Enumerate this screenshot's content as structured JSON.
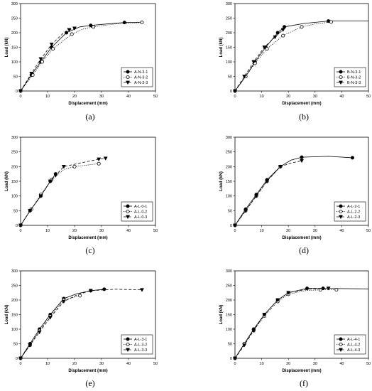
{
  "chart_data": [
    {
      "type": "line",
      "caption": "(a)",
      "xlabel": "Displacement (mm)",
      "ylabel": "Load (kN)",
      "xlim": [
        0,
        50
      ],
      "ylim": [
        0,
        300
      ],
      "xticks": [
        "0",
        "10",
        "20",
        "30",
        "40",
        "50"
      ],
      "yticks": [
        "0",
        "50",
        "100",
        "150",
        "200",
        "250",
        "300"
      ],
      "grid": false,
      "legend_position": "bottom-right",
      "series": [
        {
          "name": "A-N-3-1",
          "marker": "filled-circle",
          "line": "solid",
          "x": [
            0,
            4,
            7.5,
            11.5,
            17,
            26,
            38.5
          ],
          "y": [
            0,
            55,
            100,
            150,
            200,
            225,
            235
          ],
          "curve": [
            [
              0,
              0
            ],
            [
              4,
              55
            ],
            [
              7.5,
              100
            ],
            [
              11.5,
              150
            ],
            [
              17,
              200
            ],
            [
              22,
              220
            ],
            [
              26,
              225
            ],
            [
              32,
              230
            ],
            [
              38.5,
              235
            ],
            [
              45,
              236
            ]
          ]
        },
        {
          "name": "A-N-3-2",
          "marker": "open-circle",
          "line": "dotted",
          "x": [
            0,
            4.5,
            8,
            12,
            19,
            27,
            45
          ],
          "y": [
            0,
            55,
            100,
            145,
            195,
            220,
            235
          ],
          "curve": [
            [
              0,
              0
            ],
            [
              4.5,
              55
            ],
            [
              8,
              100
            ],
            [
              12,
              145
            ],
            [
              19,
              195
            ],
            [
              23,
              212
            ],
            [
              27,
              220
            ],
            [
              35,
              230
            ],
            [
              45,
              235
            ]
          ]
        },
        {
          "name": "A-N-3-3",
          "marker": "filled-triangle",
          "line": "dashed",
          "x": [
            0,
            4,
            7.5,
            11.5,
            18,
            20
          ],
          "y": [
            0,
            60,
            110,
            160,
            210,
            215
          ],
          "curve": [
            [
              0,
              0
            ],
            [
              4,
              60
            ],
            [
              7.5,
              110
            ],
            [
              11.5,
              160
            ],
            [
              16,
              200
            ],
            [
              18,
              210
            ],
            [
              20,
              215
            ]
          ]
        }
      ]
    },
    {
      "type": "line",
      "caption": "(b)",
      "xlabel": "Displacement (mm)",
      "ylabel": "Load (kN)",
      "xlim": [
        0,
        50
      ],
      "ylim": [
        0,
        300
      ],
      "xticks": [
        "0",
        "10",
        "20",
        "30",
        "40",
        "50"
      ],
      "yticks": [
        "0",
        "50",
        "100",
        "150",
        "200",
        "250",
        "300"
      ],
      "grid": false,
      "legend_position": "bottom-right",
      "series": [
        {
          "name": "B-N-3-1",
          "marker": "filled-circle",
          "line": "solid",
          "x": [
            0,
            4,
            7.5,
            11.5,
            16,
            18.5,
            35
          ],
          "y": [
            0,
            50,
            100,
            150,
            200,
            220,
            240
          ],
          "curve": [
            [
              0,
              0
            ],
            [
              4,
              50
            ],
            [
              7.5,
              100
            ],
            [
              11.5,
              150
            ],
            [
              16,
              200
            ],
            [
              18.5,
              220
            ],
            [
              26,
              232
            ],
            [
              35,
              240
            ],
            [
              50,
              240
            ]
          ]
        },
        {
          "name": "B-N-3-2",
          "marker": "open-circle",
          "line": "dotted",
          "x": [
            0,
            4,
            7.5,
            12,
            18,
            25,
            36
          ],
          "y": [
            0,
            50,
            95,
            145,
            190,
            220,
            237
          ],
          "curve": [
            [
              0,
              0
            ],
            [
              4,
              50
            ],
            [
              7.5,
              95
            ],
            [
              12,
              145
            ],
            [
              18,
              190
            ],
            [
              25,
              220
            ],
            [
              30,
              230
            ],
            [
              36,
              237
            ]
          ]
        },
        {
          "name": "B-N-3-3",
          "marker": "filled-triangle",
          "line": "dashed",
          "x": [
            0,
            3.5,
            7,
            11,
            15,
            18
          ],
          "y": [
            0,
            50,
            100,
            150,
            185,
            210
          ],
          "curve": [
            [
              0,
              0
            ],
            [
              3.5,
              50
            ],
            [
              7,
              100
            ],
            [
              11,
              150
            ],
            [
              15,
              185
            ],
            [
              18,
              210
            ]
          ]
        }
      ]
    },
    {
      "type": "line",
      "caption": "(c)",
      "xlabel": "Displacement (mm)",
      "ylabel": "Load (kN)",
      "xlim": [
        0,
        50
      ],
      "ylim": [
        0,
        300
      ],
      "xticks": [
        "0",
        "10",
        "20",
        "30",
        "40",
        "50"
      ],
      "yticks": [
        "0",
        "50",
        "100",
        "150",
        "200",
        "250",
        "300"
      ],
      "grid": false,
      "legend_position": "bottom-right",
      "series": [
        {
          "name": "A-L-0-1",
          "marker": "filled-circle",
          "line": "solid",
          "x": [
            0,
            3.5,
            7.5,
            11,
            13
          ],
          "y": [
            0,
            50,
            100,
            150,
            175
          ],
          "curve": [
            [
              0,
              0
            ],
            [
              3.5,
              50
            ],
            [
              7.5,
              100
            ],
            [
              11,
              150
            ],
            [
              13,
              175
            ]
          ]
        },
        {
          "name": "A-L-0-2",
          "marker": "open-circle",
          "line": "dotted",
          "x": [
            0,
            4,
            7.5,
            11.5,
            20,
            29
          ],
          "y": [
            0,
            55,
            105,
            155,
            200,
            210
          ],
          "curve": [
            [
              0,
              0
            ],
            [
              4,
              55
            ],
            [
              7.5,
              105
            ],
            [
              11.5,
              155
            ],
            [
              16,
              190
            ],
            [
              20,
              200
            ],
            [
              29,
              210
            ]
          ]
        },
        {
          "name": "A-L-0-3",
          "marker": "filled-triangle",
          "line": "dashed",
          "x": [
            0,
            3.5,
            7.5,
            11,
            13,
            16,
            29,
            31.5
          ],
          "y": [
            0,
            50,
            100,
            150,
            170,
            200,
            225,
            228
          ],
          "curve": [
            [
              0,
              0
            ],
            [
              3.5,
              50
            ],
            [
              7.5,
              100
            ],
            [
              11,
              150
            ],
            [
              13,
              170
            ],
            [
              16,
              200
            ],
            [
              22,
              212
            ],
            [
              29,
              225
            ],
            [
              31.5,
              228
            ]
          ]
        }
      ]
    },
    {
      "type": "line",
      "caption": "(d)",
      "xlabel": "Displacement (mm)",
      "ylabel": "Load (kN)",
      "xlim": [
        0,
        50
      ],
      "ylim": [
        0,
        300
      ],
      "xticks": [
        "0",
        "10",
        "20",
        "30",
        "40",
        "50"
      ],
      "yticks": [
        "0",
        "50",
        "100",
        "150",
        "200",
        "250",
        "300"
      ],
      "grid": false,
      "legend_position": "bottom-right",
      "series": [
        {
          "name": "A-L-2-1",
          "marker": "filled-circle",
          "line": "solid",
          "x": [
            0,
            4,
            8,
            12,
            17,
            25,
            44
          ],
          "y": [
            0,
            55,
            105,
            155,
            200,
            232,
            230
          ],
          "curve": [
            [
              0,
              0
            ],
            [
              4,
              55
            ],
            [
              8,
              105
            ],
            [
              12,
              155
            ],
            [
              17,
              200
            ],
            [
              21,
              222
            ],
            [
              25,
              232
            ],
            [
              35,
              235
            ],
            [
              44,
              230
            ]
          ]
        },
        {
          "name": "A-L-2-2",
          "marker": "open-circle",
          "line": "dotted",
          "x": [
            0,
            4,
            8,
            12,
            17
          ],
          "y": [
            0,
            50,
            100,
            150,
            200
          ],
          "curve": [
            [
              0,
              0
            ],
            [
              4,
              50
            ],
            [
              8,
              100
            ],
            [
              12,
              150
            ],
            [
              17,
              200
            ]
          ]
        },
        {
          "name": "A-L-2-3",
          "marker": "filled-triangle",
          "line": "dashed",
          "x": [
            0,
            4,
            8,
            12,
            17,
            25
          ],
          "y": [
            0,
            50,
            100,
            150,
            200,
            220
          ],
          "curve": [
            [
              0,
              0
            ],
            [
              4,
              50
            ],
            [
              8,
              100
            ],
            [
              12,
              150
            ],
            [
              17,
              200
            ],
            [
              21,
              212
            ],
            [
              25,
              220
            ]
          ]
        }
      ]
    },
    {
      "type": "line",
      "caption": "(e)",
      "xlabel": "Displacement (mm)",
      "ylabel": "Load (kN)",
      "xlim": [
        0,
        50
      ],
      "ylim": [
        0,
        300
      ],
      "xticks": [
        "0",
        "10",
        "20",
        "30",
        "40",
        "50"
      ],
      "yticks": [
        "0",
        "50",
        "100",
        "150",
        "200",
        "250",
        "300"
      ],
      "grid": false,
      "legend_position": "bottom-right",
      "series": [
        {
          "name": "A-L-3-1",
          "marker": "filled-circle",
          "line": "solid",
          "x": [
            0,
            3.5,
            7,
            11,
            16,
            26,
            31
          ],
          "y": [
            0,
            50,
            100,
            150,
            205,
            232,
            237
          ],
          "curve": [
            [
              0,
              0
            ],
            [
              3.5,
              50
            ],
            [
              7,
              100
            ],
            [
              11,
              150
            ],
            [
              16,
              205
            ],
            [
              21,
              222
            ],
            [
              26,
              232
            ],
            [
              31,
              237
            ]
          ]
        },
        {
          "name": "A-L-3-2",
          "marker": "open-circle",
          "line": "dotted",
          "x": [
            0,
            3.5,
            7,
            11,
            16,
            22
          ],
          "y": [
            0,
            45,
            95,
            145,
            200,
            215
          ],
          "curve": [
            [
              0,
              0
            ],
            [
              3.5,
              45
            ],
            [
              7,
              95
            ],
            [
              11,
              145
            ],
            [
              16,
              200
            ],
            [
              22,
              215
            ]
          ]
        },
        {
          "name": "A-L-3-3",
          "marker": "filled-triangle",
          "line": "dashed",
          "x": [
            0,
            3.5,
            7,
            11,
            16,
            26,
            45
          ],
          "y": [
            0,
            45,
            90,
            140,
            195,
            232,
            235
          ],
          "curve": [
            [
              0,
              0
            ],
            [
              3.5,
              45
            ],
            [
              7,
              90
            ],
            [
              11,
              140
            ],
            [
              16,
              195
            ],
            [
              21,
              218
            ],
            [
              26,
              232
            ],
            [
              35,
              237
            ],
            [
              45,
              235
            ]
          ]
        }
      ]
    },
    {
      "type": "line",
      "caption": "(f)",
      "xlabel": "Displacement (mm)",
      "ylabel": "Load (kN)",
      "xlim": [
        0,
        50
      ],
      "ylim": [
        0,
        300
      ],
      "xticks": [
        "0",
        "10",
        "20",
        "30",
        "40",
        "50"
      ],
      "yticks": [
        "0",
        "50",
        "100",
        "150",
        "200",
        "250",
        "300"
      ],
      "grid": false,
      "legend_position": "bottom-right",
      "series": [
        {
          "name": "A-L-4-1",
          "marker": "filled-circle",
          "line": "solid",
          "x": [
            0,
            3.5,
            7,
            11,
            16,
            20,
            27,
            33
          ],
          "y": [
            0,
            50,
            100,
            150,
            200,
            225,
            240,
            240
          ],
          "curve": [
            [
              0,
              0
            ],
            [
              3.5,
              50
            ],
            [
              7,
              100
            ],
            [
              11,
              150
            ],
            [
              16,
              200
            ],
            [
              20,
              225
            ],
            [
              27,
              240
            ],
            [
              33,
              240
            ],
            [
              50,
              238
            ]
          ]
        },
        {
          "name": "A-L-4-2",
          "marker": "open-circle",
          "line": "dotted",
          "x": [
            0,
            3.5,
            7,
            11,
            16,
            20,
            32,
            38
          ],
          "y": [
            0,
            50,
            95,
            145,
            195,
            220,
            235,
            235
          ],
          "curve": [
            [
              0,
              0
            ],
            [
              3.5,
              50
            ],
            [
              7,
              95
            ],
            [
              11,
              145
            ],
            [
              16,
              195
            ],
            [
              20,
              220
            ],
            [
              26,
              232
            ],
            [
              32,
              235
            ],
            [
              38,
              235
            ]
          ]
        },
        {
          "name": "A-L-4-3",
          "marker": "filled-triangle",
          "line": "dashed",
          "x": [
            0,
            3.5,
            7,
            11,
            16,
            20,
            35
          ],
          "y": [
            0,
            45,
            95,
            150,
            200,
            225,
            240
          ],
          "curve": [
            [
              0,
              0
            ],
            [
              3.5,
              45
            ],
            [
              7,
              95
            ],
            [
              11,
              150
            ],
            [
              16,
              200
            ],
            [
              20,
              225
            ],
            [
              27,
              237
            ],
            [
              35,
              240
            ]
          ]
        }
      ]
    }
  ]
}
